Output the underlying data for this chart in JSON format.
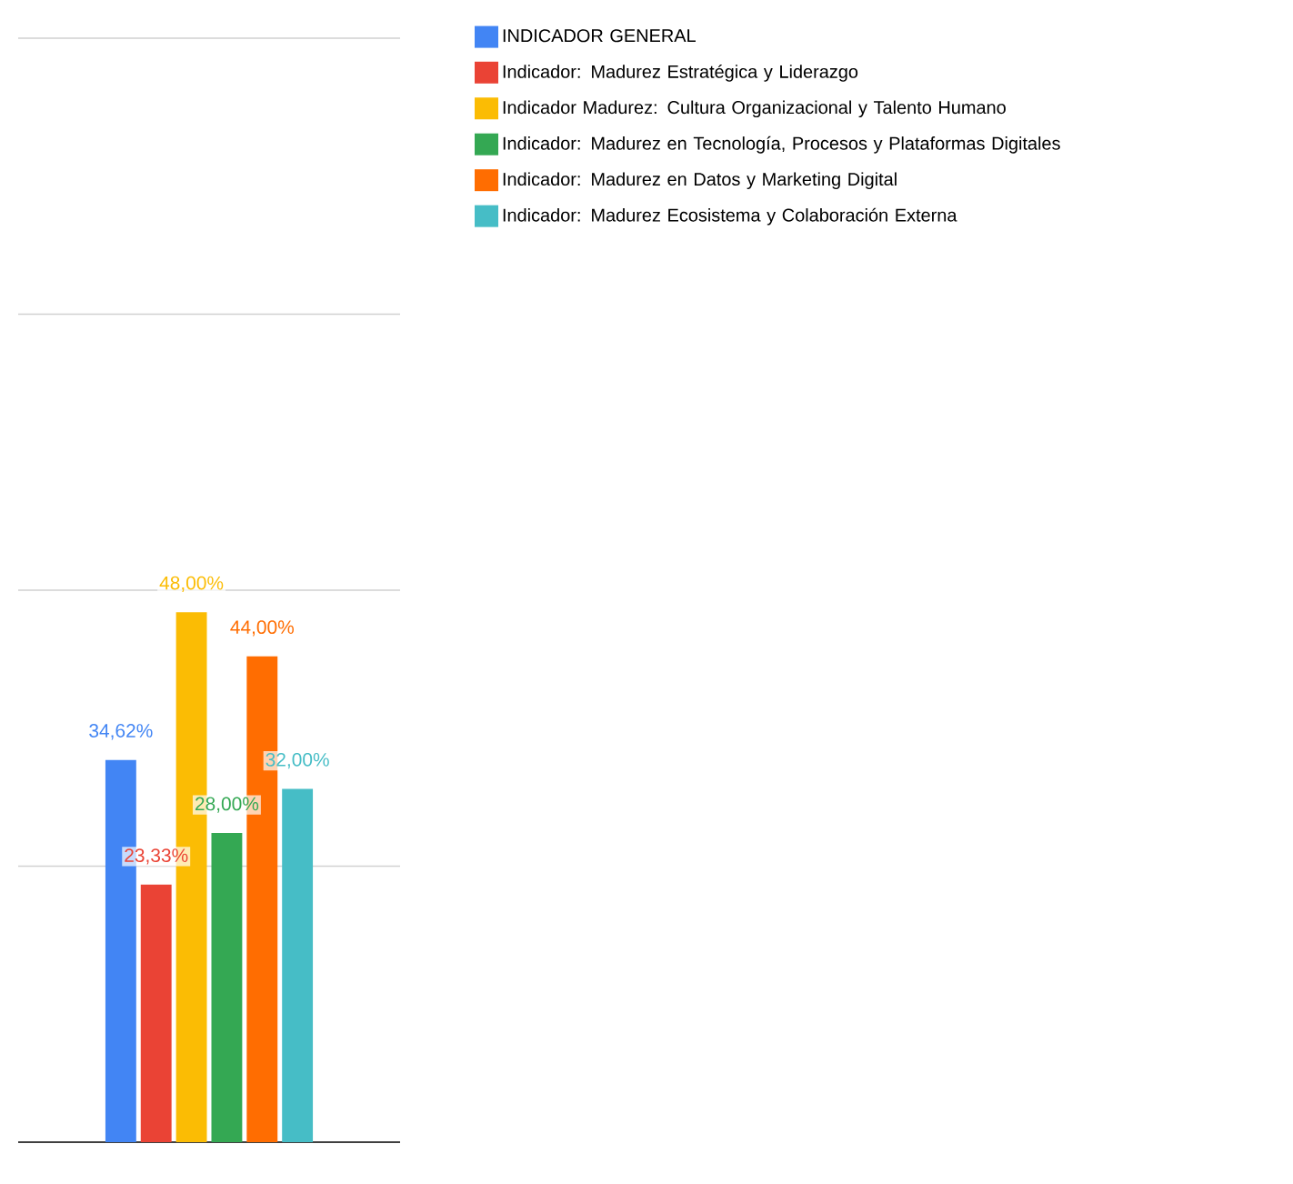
{
  "chart_data": {
    "type": "bar",
    "categories": [
      null
    ],
    "series": [
      {
        "name": "INDICADOR GENERAL",
        "color": "#4285f4",
        "values": [
          34.62
        ],
        "value_labels": [
          "34,62%"
        ]
      },
      {
        "name": "Indicador: Madurez Estratégica y Liderazgo",
        "color": "#ea4335",
        "values": [
          23.33
        ],
        "value_labels": [
          "23,33%"
        ]
      },
      {
        "name": "Indicador Madurez: Cultura Organizacional y Talento Humano",
        "color": "#fbbc04",
        "values": [
          48.0
        ],
        "value_labels": [
          "48,00%"
        ]
      },
      {
        "name": "Indicador: Madurez en Tecnología, Procesos y Plataformas Digitales",
        "color": "#34a853",
        "values": [
          28.0
        ],
        "value_labels": [
          "28,00%"
        ]
      },
      {
        "name": "Indicador: Madurez en Datos y Marketing Digital",
        "color": "#ff6d01",
        "values": [
          44.0
        ],
        "value_labels": [
          "44,00%"
        ]
      },
      {
        "name": "Indicador: Madurez Ecosistema y Colaboración Externa",
        "color": "#46bdc6",
        "values": [
          32.0
        ],
        "value_labels": [
          "32,00%"
        ]
      }
    ],
    "ylim": [
      0,
      100
    ],
    "yticks": [
      {
        "value": 25,
        "label": null
      },
      {
        "value": 50,
        "label": null
      },
      {
        "value": 75,
        "label": null
      },
      {
        "value": 100,
        "label": null
      }
    ],
    "grid": "y",
    "legend": "right"
  }
}
